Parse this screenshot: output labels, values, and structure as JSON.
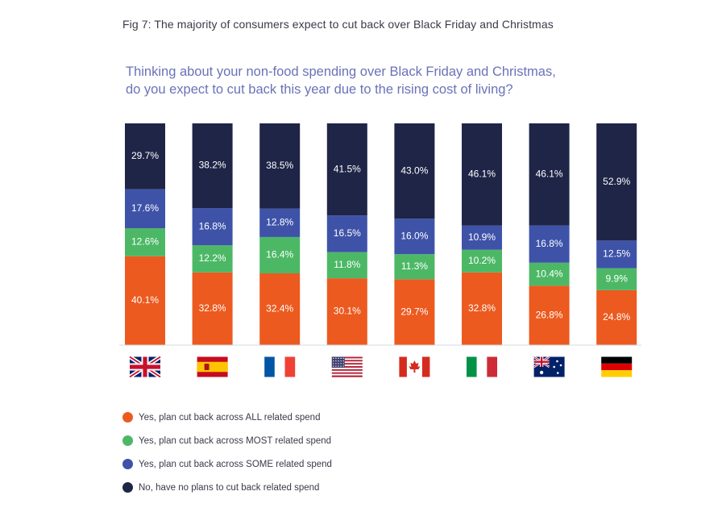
{
  "figure_title": "Fig 7: The majority of consumers expect to cut back over Black Friday and Christmas",
  "question_lines": [
    "Thinking about your non-food spending over Black Friday and Christmas,",
    "do you expect to cut back this year due to the rising cost of living?"
  ],
  "colors": {
    "all": "#ec5a1f",
    "most": "#4cb866",
    "some": "#3e53a8",
    "none": "#1e2547",
    "title": "#3a3a4a",
    "question": "#6a72b8"
  },
  "legend": [
    {
      "key": "all",
      "label": "Yes, plan cut back across ALL related spend"
    },
    {
      "key": "most",
      "label": "Yes, plan cut back across MOST related spend"
    },
    {
      "key": "some",
      "label": "Yes, plan cut back across SOME related spend"
    },
    {
      "key": "none",
      "label": "No, have no plans to cut back related spend"
    }
  ],
  "chart_data": {
    "type": "bar",
    "stacked": true,
    "unit": "%",
    "categories": [
      "UK",
      "Spain",
      "France",
      "USA",
      "Canada",
      "Italy",
      "Australia",
      "Germany"
    ],
    "category_icons": [
      "uk-flag-icon",
      "spain-flag-icon",
      "france-flag-icon",
      "usa-flag-icon",
      "canada-flag-icon",
      "italy-flag-icon",
      "australia-flag-icon",
      "germany-flag-icon"
    ],
    "series": [
      {
        "key": "all",
        "name": "Yes, plan cut back across ALL related spend",
        "values": [
          40.1,
          32.8,
          32.4,
          30.1,
          29.7,
          32.8,
          26.8,
          24.8
        ]
      },
      {
        "key": "most",
        "name": "Yes, plan cut back across MOST related spend",
        "values": [
          12.6,
          12.2,
          16.4,
          11.8,
          11.3,
          10.2,
          10.4,
          9.9
        ]
      },
      {
        "key": "some",
        "name": "Yes, plan cut back across SOME related spend",
        "values": [
          17.6,
          16.8,
          12.8,
          16.5,
          16.0,
          10.9,
          16.8,
          12.5
        ]
      },
      {
        "key": "none",
        "name": "No, have no plans to cut back related spend",
        "values": [
          29.7,
          38.2,
          38.5,
          41.5,
          43.0,
          46.1,
          46.1,
          52.9
        ]
      }
    ],
    "labels": [
      [
        "40.1%",
        "12.6%",
        "17.6%",
        "29.7%"
      ],
      [
        "32.8%",
        "12.2%",
        "16.8%",
        "38.2%"
      ],
      [
        "32.4%",
        "16.4%",
        "12.8%",
        "38.5%"
      ],
      [
        "30.1%",
        "11.8%",
        "16.5%",
        "41.5%"
      ],
      [
        "29.7%",
        "11.3%",
        "16.0%",
        "43.0%"
      ],
      [
        "32.8%",
        "10.2%",
        "10.9%",
        "46.1%"
      ],
      [
        "26.8%",
        "10.4%",
        "16.8%",
        "46.1%"
      ],
      [
        "24.8%",
        "9.9%",
        "12.5%",
        "52.9%"
      ]
    ],
    "ylim": [
      0,
      100
    ],
    "grid": false,
    "legend_position": "bottom-left"
  }
}
